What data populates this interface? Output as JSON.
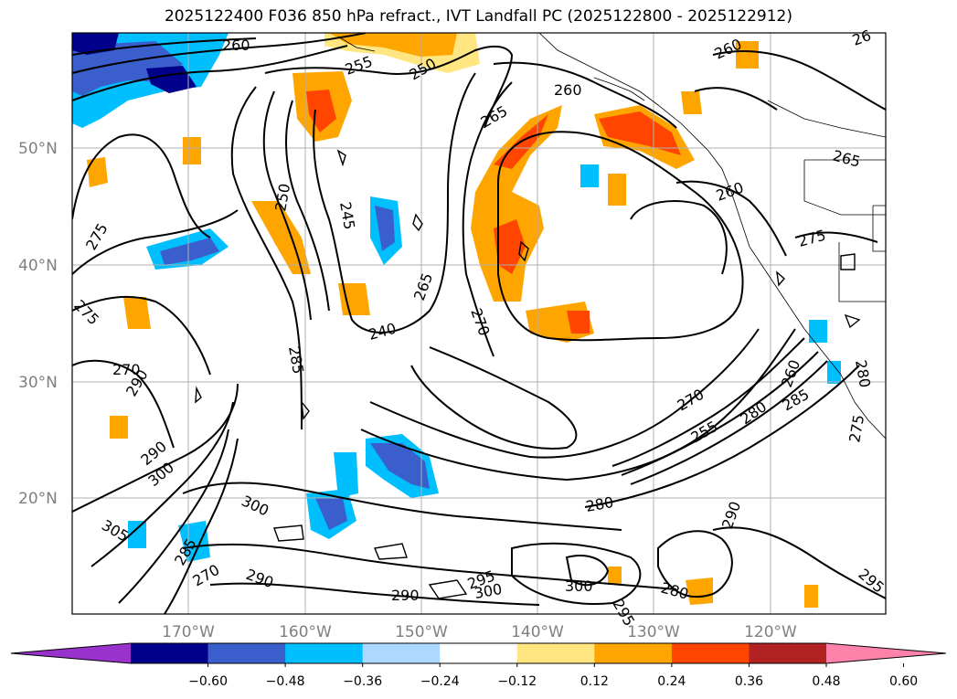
{
  "title": "2025122400 F036 850 hPa refract., IVT Landfall PC (2025122800 - 2025122912)",
  "lat_labels": [
    "50°N",
    "40°N",
    "30°N",
    "20°N"
  ],
  "lon_labels": [
    "170°W",
    "160°W",
    "150°W",
    "140°W",
    "130°W",
    "120°W"
  ],
  "colorbar": {
    "ticks": [
      "−0.60",
      "−0.48",
      "−0.36",
      "−0.24",
      "−0.12",
      "0.12",
      "0.24",
      "0.36",
      "0.48",
      "0.60"
    ],
    "colors": [
      "#9932cc",
      "#00008b",
      "#3a5fcd",
      "#00bfff",
      "#add8ff",
      "#ffffff",
      "#ffe680",
      "#ffa500",
      "#ff4500",
      "#b22222",
      "#ff82ab"
    ]
  },
  "contour_labels": [
    "260",
    "255",
    "250",
    "260",
    "265",
    "260",
    "26",
    "265",
    "260",
    "275",
    "275",
    "275",
    "250",
    "245",
    "265",
    "240",
    "270",
    "285",
    "270",
    "290",
    "290",
    "300",
    "305",
    "300",
    "285",
    "270",
    "290",
    "290",
    "295",
    "300",
    "300",
    "280",
    "270",
    "255",
    "280",
    "290",
    "285",
    "260",
    "280",
    "275",
    "280",
    "295",
    "295"
  ]
}
